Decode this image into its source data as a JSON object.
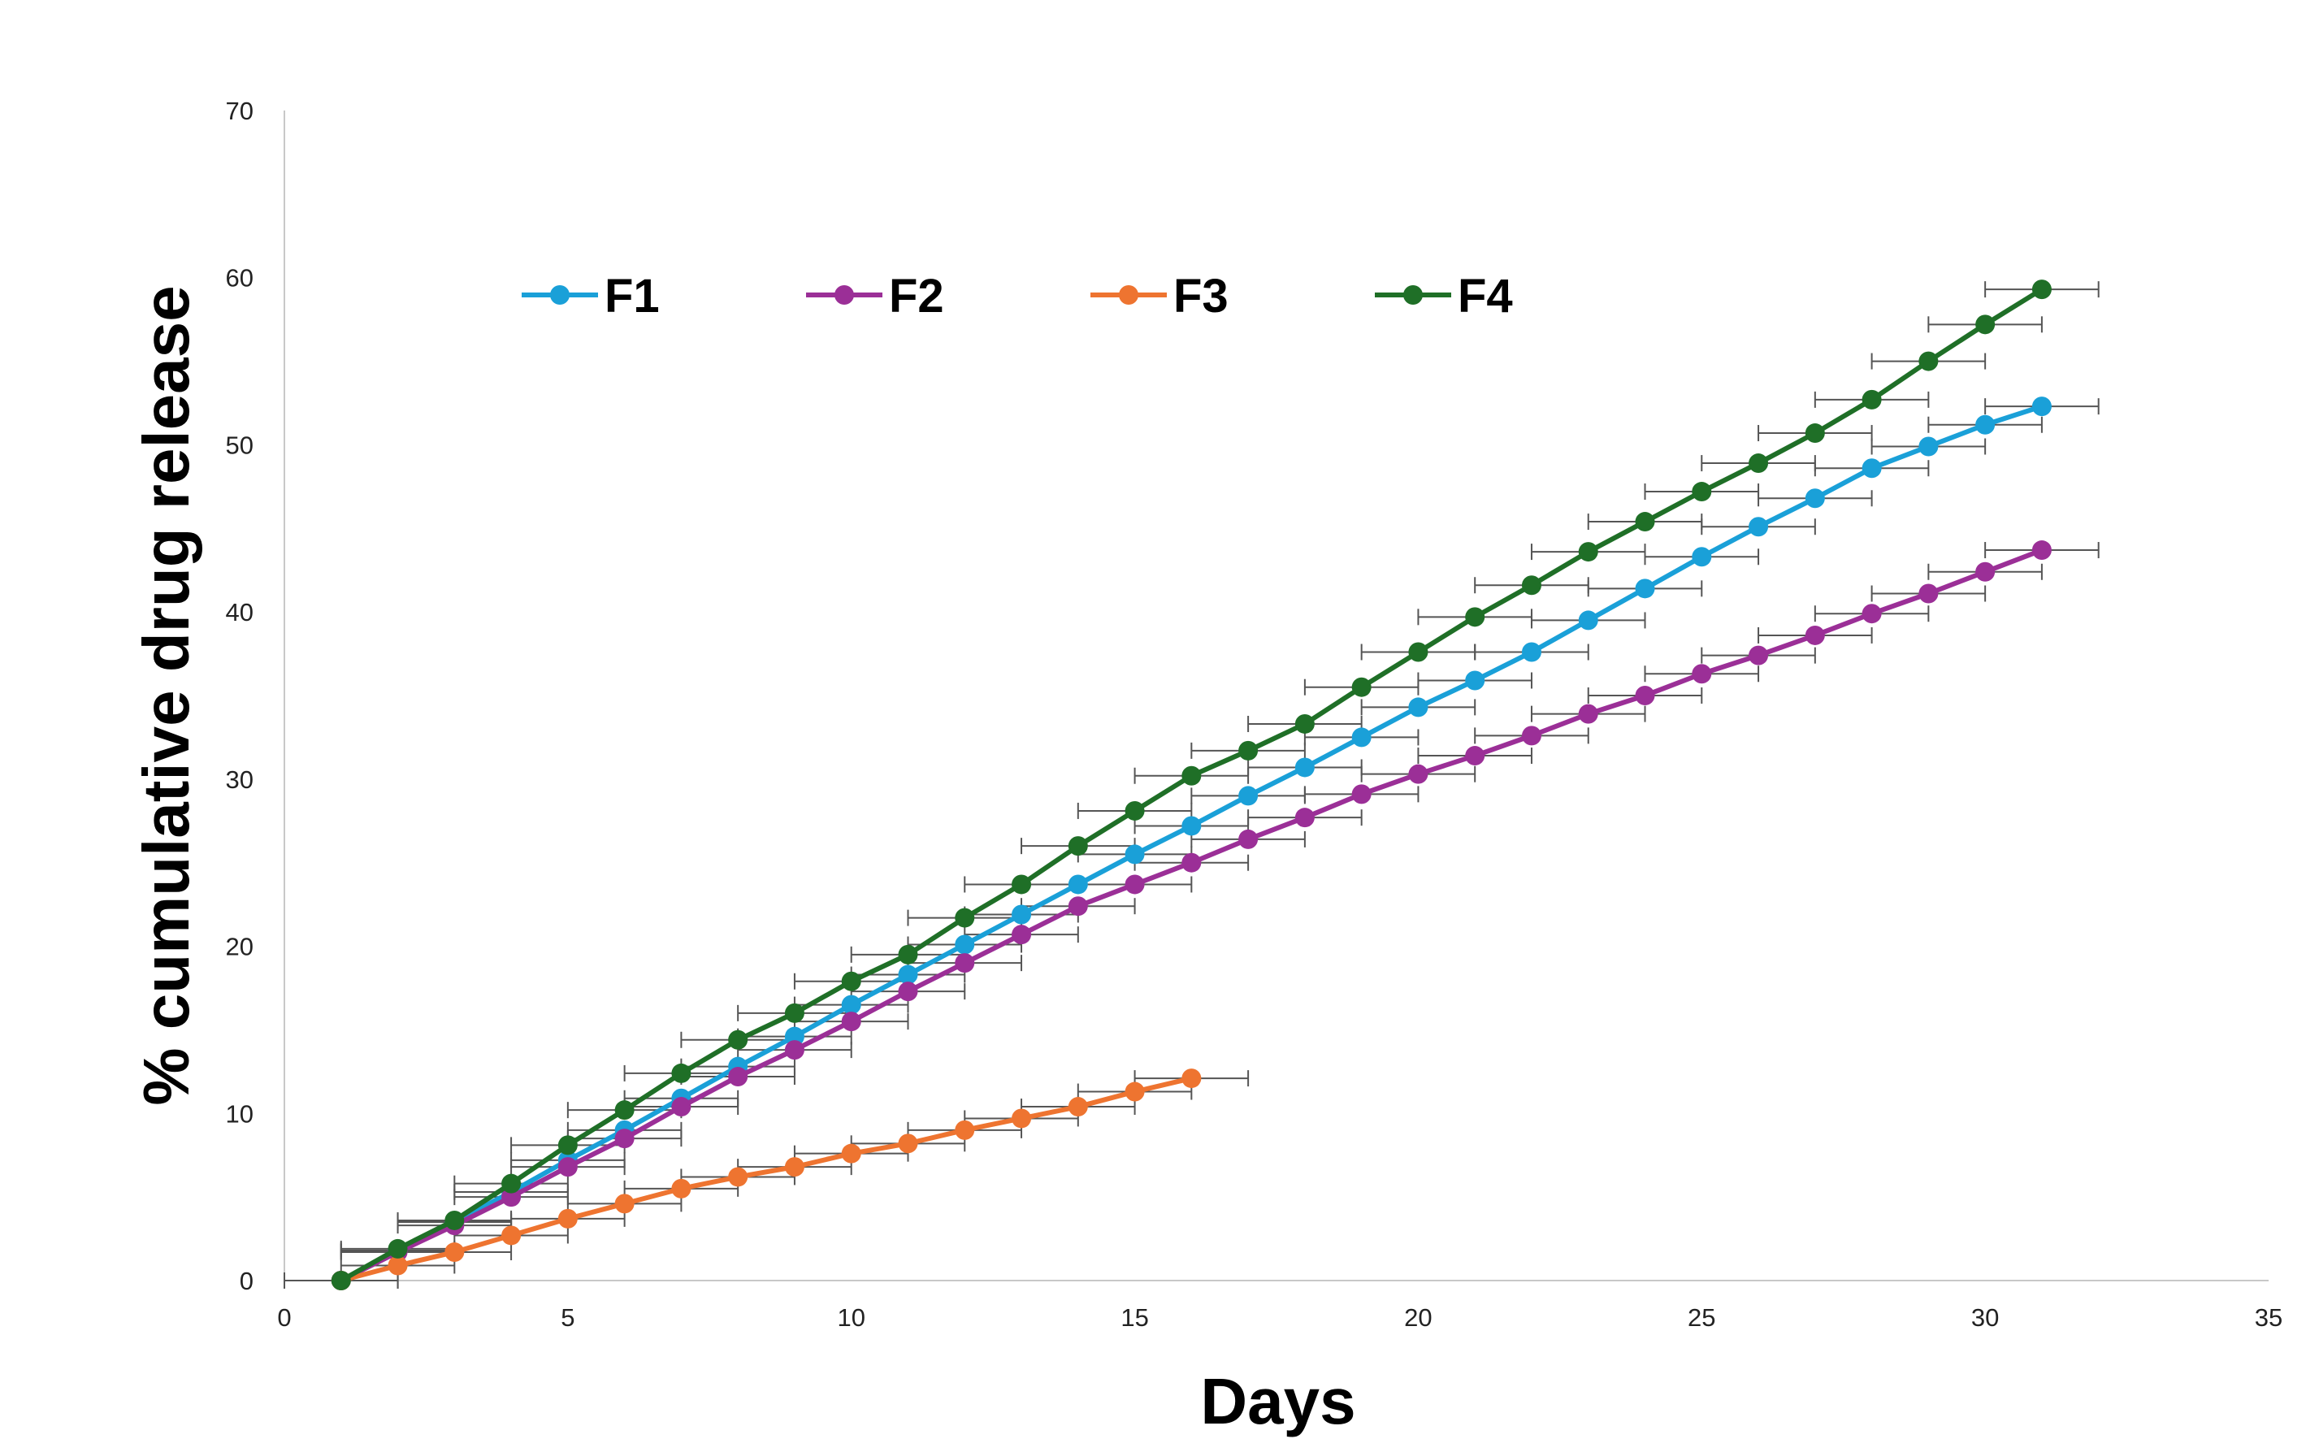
{
  "chart_data": {
    "type": "line",
    "title": "",
    "xlabel": "Days",
    "ylabel": "% cumulative drug release",
    "xlim": [
      0,
      35
    ],
    "ylim": [
      0,
      70
    ],
    "xticks": [
      0,
      5,
      10,
      15,
      20,
      25,
      30,
      35
    ],
    "yticks": [
      0,
      10,
      20,
      30,
      40,
      50,
      60,
      70
    ],
    "grid": false,
    "legend_position": "top",
    "error_bars": "horizontal, ±1 day",
    "series": [
      {
        "name": "F1",
        "color": "#1aa0d8",
        "x": [
          1,
          2,
          3,
          4,
          5,
          6,
          7,
          8,
          9,
          10,
          11,
          12,
          13,
          14,
          15,
          16,
          17,
          18,
          19,
          20,
          21,
          22,
          23,
          24,
          25,
          26,
          27,
          28,
          29,
          30,
          31
        ],
        "y": [
          0,
          1.8,
          3.5,
          5.3,
          7.2,
          9.0,
          10.9,
          12.8,
          14.6,
          16.5,
          18.3,
          20.1,
          21.9,
          23.7,
          25.5,
          27.2,
          29.0,
          30.7,
          32.5,
          34.3,
          35.9,
          37.6,
          39.5,
          41.4,
          43.3,
          45.1,
          46.8,
          48.6,
          49.9,
          51.2,
          52.3
        ]
      },
      {
        "name": "F2",
        "color": "#9b2f97",
        "x": [
          1,
          2,
          3,
          4,
          5,
          6,
          7,
          8,
          9,
          10,
          11,
          12,
          13,
          14,
          15,
          16,
          17,
          18,
          19,
          20,
          21,
          22,
          23,
          24,
          25,
          26,
          27,
          28,
          29,
          30,
          31
        ],
        "y": [
          0,
          1.7,
          3.3,
          5.0,
          6.8,
          8.5,
          10.4,
          12.2,
          13.8,
          15.5,
          17.3,
          19.0,
          20.7,
          22.4,
          23.7,
          25.0,
          26.4,
          27.7,
          29.1,
          30.3,
          31.4,
          32.6,
          33.9,
          35.0,
          36.3,
          37.4,
          38.6,
          39.9,
          41.1,
          42.4,
          43.7
        ]
      },
      {
        "name": "F3",
        "color": "#ee7430",
        "x": [
          1,
          2,
          3,
          4,
          5,
          6,
          7,
          8,
          9,
          10,
          11,
          12,
          13,
          14,
          15,
          16
        ],
        "y": [
          0,
          0.9,
          1.7,
          2.7,
          3.7,
          4.6,
          5.5,
          6.2,
          6.8,
          7.6,
          8.2,
          9.0,
          9.7,
          10.4,
          11.3,
          12.1
        ]
      },
      {
        "name": "F4",
        "color": "#1f6f27",
        "x": [
          1,
          2,
          3,
          4,
          5,
          6,
          7,
          8,
          9,
          10,
          11,
          12,
          13,
          14,
          15,
          16,
          17,
          18,
          19,
          20,
          21,
          22,
          23,
          24,
          25,
          26,
          27,
          28,
          29,
          30,
          31
        ],
        "y": [
          0,
          1.9,
          3.6,
          5.8,
          8.1,
          10.2,
          12.4,
          14.4,
          16.0,
          17.9,
          19.5,
          21.7,
          23.7,
          26.0,
          28.1,
          30.2,
          31.7,
          33.3,
          35.5,
          37.6,
          39.7,
          41.6,
          43.6,
          45.4,
          47.2,
          48.9,
          50.7,
          52.7,
          55.0,
          57.2,
          59.3
        ]
      }
    ]
  }
}
